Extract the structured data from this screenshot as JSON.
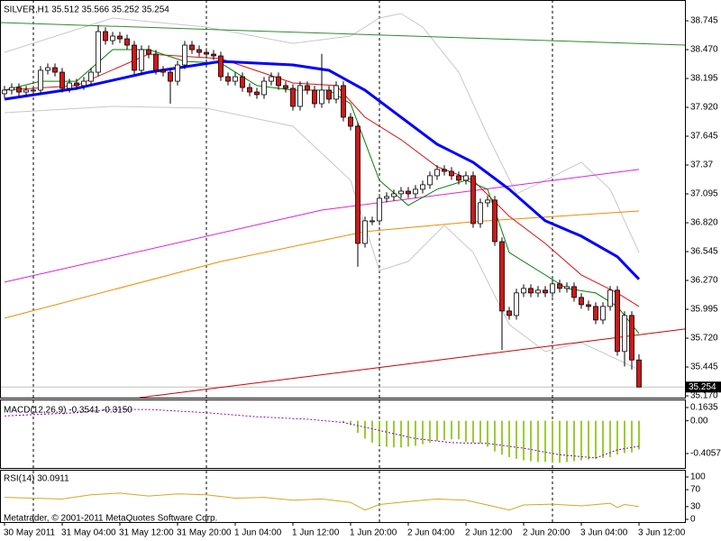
{
  "chart_data": [
    {
      "type": "candlestick",
      "title": "SILVER,H1  35.512 35.566 35.252 35.254",
      "categories": [
        "30 May 2011",
        null,
        null,
        null,
        null,
        null,
        null,
        null,
        "31 May 04:00",
        null,
        null,
        null,
        null,
        null,
        null,
        null,
        "31 May 12:00",
        null,
        null,
        null,
        null,
        null,
        null,
        null,
        "31 May 20:00",
        null,
        null,
        null,
        null,
        null,
        null,
        null,
        "1 Jun 04:00",
        null,
        null,
        null,
        null,
        null,
        null,
        null,
        "1 Jun 12:00",
        null,
        null,
        null,
        null,
        null,
        null,
        null,
        "1 Jun 20:00",
        null,
        null,
        null,
        null,
        null,
        null,
        null,
        "2 Jun 04:00",
        null,
        null,
        null,
        null,
        null,
        null,
        null,
        "2 Jun 12:00",
        null,
        null,
        null,
        null,
        null,
        null,
        null,
        "2 Jun 20:00",
        null,
        null,
        null,
        null,
        null,
        null,
        null,
        "3 Jun 04:00",
        null,
        null,
        null,
        null,
        null,
        null,
        null,
        "3 Jun 12:00"
      ],
      "open": [
        38.05,
        38.084,
        38.109,
        38.066,
        38.084,
        38.084,
        38.273,
        38.298,
        38.255,
        38.101,
        38.152,
        38.127,
        38.169,
        38.255,
        38.642,
        38.556,
        38.599,
        38.573,
        38.513,
        38.273,
        38.47,
        38.427,
        38.273,
        38.255,
        38.169,
        38.324,
        38.513,
        38.47,
        38.444,
        38.427,
        38.41,
        38.212,
        38.169,
        38.212,
        38.109,
        38.066,
        38.041,
        38.169,
        38.212,
        38.127,
        38.101,
        37.929,
        38.127,
        38.084,
        37.955,
        38.084,
        37.998,
        38.127,
        37.826,
        37.74,
        36.623,
        36.838,
        36.838,
        37.053,
        37.07,
        37.096,
        37.121,
        37.096,
        37.139,
        37.182,
        37.268,
        37.328,
        37.31,
        37.268,
        37.225,
        37.268,
        36.812,
        37.01,
        37.036,
        36.64,
        35.979,
        35.936,
        36.151,
        36.194,
        36.151,
        36.177,
        36.151,
        36.237,
        36.194,
        36.211,
        36.108,
        36.039,
        36.022,
        35.893,
        36.022,
        36.177,
        35.593,
        35.936,
        35.512
      ],
      "high": [
        38.124,
        38.149,
        38.149,
        38.124,
        38.124,
        38.313,
        38.338,
        38.338,
        38.295,
        38.192,
        38.192,
        38.209,
        38.295,
        38.7,
        38.682,
        38.639,
        38.639,
        38.613,
        38.553,
        38.51,
        38.51,
        38.467,
        38.313,
        38.295,
        38.364,
        38.553,
        38.553,
        38.51,
        38.484,
        38.467,
        38.45,
        38.252,
        38.252,
        38.252,
        38.149,
        38.106,
        38.209,
        38.252,
        38.252,
        38.167,
        38.141,
        38.167,
        38.167,
        38.124,
        38.43,
        38.124,
        38.167,
        38.167,
        37.866,
        37.78,
        36.878,
        36.878,
        37.093,
        37.11,
        37.136,
        37.161,
        37.161,
        37.179,
        37.222,
        37.308,
        37.368,
        37.368,
        37.35,
        37.308,
        37.308,
        37.308,
        37.05,
        37.076,
        37.076,
        36.68,
        36.019,
        36.191,
        36.234,
        36.234,
        36.217,
        36.217,
        36.277,
        36.277,
        36.251,
        36.251,
        36.148,
        36.079,
        36.062,
        36.062,
        36.217,
        36.217,
        35.976,
        35.976,
        35.566
      ],
      "low": [
        38.01,
        38.044,
        38.026,
        38.026,
        38.044,
        38.044,
        38.233,
        38.215,
        38.061,
        38.061,
        38.087,
        38.087,
        38.129,
        38.215,
        38.516,
        38.516,
        38.533,
        38.473,
        38.233,
        38.233,
        38.387,
        38.233,
        38.215,
        37.955,
        38.129,
        38.284,
        38.43,
        38.404,
        38.387,
        38.37,
        38.172,
        38.129,
        38.129,
        38.069,
        38.026,
        38.001,
        38.001,
        38.129,
        38.087,
        38.061,
        37.889,
        37.889,
        38.044,
        37.915,
        37.915,
        37.958,
        37.958,
        37.786,
        37.7,
        36.4,
        36.583,
        36.798,
        36.798,
        37.013,
        37.03,
        37.056,
        37.056,
        37.056,
        37.099,
        37.142,
        37.228,
        37.27,
        37.228,
        37.185,
        37.185,
        36.772,
        36.772,
        36.97,
        36.6,
        35.609,
        35.896,
        35.896,
        36.111,
        36.111,
        36.111,
        36.111,
        36.111,
        36.154,
        36.154,
        36.068,
        35.999,
        35.982,
        35.853,
        35.853,
        35.982,
        35.553,
        35.45,
        35.42,
        35.252
      ],
      "close": [
        38.084,
        38.109,
        38.066,
        38.084,
        38.084,
        38.273,
        38.298,
        38.255,
        38.101,
        38.152,
        38.127,
        38.169,
        38.255,
        38.642,
        38.556,
        38.599,
        38.573,
        38.513,
        38.273,
        38.47,
        38.427,
        38.273,
        38.255,
        38.169,
        38.324,
        38.513,
        38.47,
        38.444,
        38.427,
        38.41,
        38.212,
        38.169,
        38.212,
        38.109,
        38.066,
        38.041,
        38.169,
        38.212,
        38.127,
        38.101,
        37.929,
        38.127,
        38.084,
        37.955,
        38.084,
        37.998,
        38.127,
        37.826,
        37.74,
        36.623,
        36.838,
        36.838,
        37.053,
        37.07,
        37.096,
        37.121,
        37.096,
        37.139,
        37.182,
        37.268,
        37.328,
        37.31,
        37.268,
        37.225,
        37.268,
        36.812,
        37.01,
        37.036,
        36.64,
        35.979,
        35.936,
        36.151,
        36.194,
        36.151,
        36.177,
        36.151,
        36.237,
        36.194,
        36.211,
        36.108,
        36.039,
        36.022,
        35.893,
        36.022,
        36.177,
        35.593,
        35.936,
        35.512,
        35.254
      ],
      "up_color": "#ffffff",
      "down_color": "#d01818",
      "wick_color": "#000000",
      "ylim": [
        35.153,
        38.943
      ],
      "yticks": [
        38.745,
        {
          "value": 38.47,
          "label": "38.470"
        },
        38.195,
        {
          "value": 37.92,
          "label": "37.920"
        },
        37.645,
        37.37,
        37.095,
        {
          "value": 36.82,
          "label": "36.820"
        },
        36.545,
        {
          "value": 36.27,
          "label": "36.270"
        },
        35.995,
        {
          "value": 35.72,
          "label": "35.720"
        },
        35.445,
        {
          "value": 35.17,
          "label": "35.170"
        }
      ],
      "current_price": 35.254,
      "overlays": [
        {
          "color": "#c8c8c8",
          "width": 1,
          "x": [
            0,
            15,
            28,
            40,
            48,
            52,
            55,
            58,
            63,
            67,
            71,
            75,
            80,
            84,
            88
          ],
          "values": [
            38.444,
            38.771,
            38.685,
            38.53,
            38.599,
            38.771,
            38.814,
            38.685,
            38.255,
            37.654,
            37.096,
            37.225,
            37.396,
            37.139,
            36.537
          ]
        },
        {
          "color": "#c8c8c8",
          "width": 1,
          "x": [
            0,
            15,
            28,
            40,
            48,
            52,
            56,
            61,
            65,
            70,
            75,
            80,
            84,
            88
          ],
          "values": [
            37.869,
            37.929,
            37.912,
            37.74,
            37.224,
            36.365,
            36.451,
            36.795,
            36.537,
            35.85,
            35.592,
            35.678,
            35.549,
            35.42
          ]
        },
        {
          "color": "#2e8b2e",
          "width": 1,
          "x": [
            -0.6,
            94.4
          ],
          "values": [
            38.728,
            38.513
          ]
        },
        {
          "color": "#cc0000",
          "width": 1,
          "x": [
            18.75,
            94.4
          ],
          "values": [
            35.153,
            35.807
          ]
        },
        {
          "color": "#dd22dd",
          "width": 1,
          "x": [
            0,
            44,
            88
          ],
          "values": [
            36.254,
            36.941,
            37.328
          ]
        },
        {
          "color": "#f08c00",
          "width": 1,
          "x": [
            0,
            30,
            50,
            65,
            88
          ],
          "values": [
            35.91,
            36.451,
            36.735,
            36.83,
            36.932
          ]
        },
        {
          "color": "#e01010",
          "width": 1,
          "x": [
            0,
            10,
            20,
            30,
            40,
            46,
            50,
            55,
            60,
            65,
            70,
            75,
            80,
            85,
            88
          ],
          "values": [
            38.084,
            38.127,
            38.427,
            38.384,
            38.152,
            38.127,
            37.826,
            37.612,
            37.354,
            37.225,
            36.881,
            36.623,
            36.323,
            36.151,
            36.022
          ]
        },
        {
          "color": "#008000",
          "width": 1,
          "x": [
            0,
            5,
            10,
            15,
            20,
            25,
            30,
            35,
            40,
            45,
            48,
            52,
            56,
            60,
            64,
            67,
            70,
            74,
            78,
            82,
            85,
            88
          ],
          "values": [
            38.084,
            38.169,
            38.169,
            38.47,
            38.47,
            38.358,
            38.341,
            38.127,
            38.084,
            38.084,
            37.955,
            37.224,
            36.985,
            37.139,
            37.225,
            37.139,
            36.537,
            36.365,
            36.194,
            36.151,
            36.022,
            35.764
          ]
        },
        {
          "color": "#0000ff",
          "width": 3,
          "x": [
            0,
            10,
            20,
            30,
            40,
            45,
            50,
            55,
            60,
            65,
            70,
            75,
            80,
            85,
            88
          ],
          "values": [
            37.998,
            38.101,
            38.255,
            38.358,
            38.324,
            38.273,
            38.084,
            37.826,
            37.568,
            37.396,
            37.139,
            36.838,
            36.692,
            36.496,
            36.281
          ]
        }
      ]
    },
    {
      "type": "bar",
      "title": "MACD(12,26,9) -0.3541 -0.3150",
      "ylim": [
        -0.584,
        0.264
      ],
      "yticks": [
        0.1635,
        {
          "value": 0,
          "label": "0.00"
        },
        -0.4057
      ],
      "series": [
        {
          "type": "bar",
          "color": "#9acd32",
          "values": [
            null,
            null,
            null,
            null,
            null,
            null,
            null,
            null,
            null,
            null,
            null,
            null,
            null,
            null,
            null,
            null,
            null,
            null,
            null,
            null,
            null,
            null,
            null,
            null,
            null,
            null,
            null,
            null,
            null,
            null,
            null,
            null,
            null,
            null,
            null,
            null,
            null,
            null,
            null,
            null,
            null,
            null,
            null,
            null,
            null,
            null,
            null,
            -0.02,
            -0.05,
            -0.15,
            -0.22,
            -0.27,
            -0.3,
            -0.32,
            -0.33,
            -0.33,
            -0.32,
            -0.31,
            -0.29,
            -0.27,
            -0.25,
            -0.24,
            -0.23,
            -0.23,
            -0.26,
            -0.27,
            -0.28,
            -0.32,
            -0.38,
            -0.42,
            -0.45,
            -0.47,
            -0.49,
            -0.5,
            -0.51,
            -0.51,
            -0.52,
            -0.52,
            -0.51,
            -0.5,
            -0.49,
            -0.48,
            -0.47,
            -0.46,
            -0.45,
            -0.42,
            -0.4,
            -0.39,
            -0.3541
          ]
        },
        {
          "type": "line",
          "color": "#9400d3",
          "dash": true,
          "x": [
            0,
            10,
            15,
            20,
            28,
            35,
            42,
            47,
            52,
            57,
            62,
            67,
            72,
            77,
            82,
            85,
            88
          ],
          "values": [
            0.06,
            0.1,
            0.14,
            0.14,
            0.1,
            0.05,
            0.02,
            -0.02,
            -0.12,
            -0.22,
            -0.27,
            -0.28,
            -0.34,
            -0.42,
            -0.46,
            -0.36,
            -0.315
          ]
        }
      ]
    },
    {
      "type": "line",
      "title": "RSI(14) 30.0911",
      "annotation": "Metatrader, © 2001-2011 MetaQuotes Software Corp.",
      "ylim": [
        -6.4,
        117
      ],
      "yticks": [
        100,
        70,
        30,
        0
      ],
      "series": [
        {
          "color": "#daa520",
          "x": [
            0,
            4,
            8,
            12,
            16,
            20,
            24,
            28,
            32,
            36,
            40,
            44,
            48,
            50,
            52,
            56,
            60,
            64,
            68,
            70,
            72,
            76,
            80,
            84,
            85,
            86,
            88
          ],
          "values": [
            52,
            50,
            48,
            58,
            62,
            55,
            60,
            58,
            50,
            52,
            45,
            48,
            40,
            22,
            35,
            42,
            48,
            45,
            30,
            22,
            34,
            36,
            32,
            38,
            28,
            35,
            30.0911
          ]
        }
      ]
    }
  ]
}
